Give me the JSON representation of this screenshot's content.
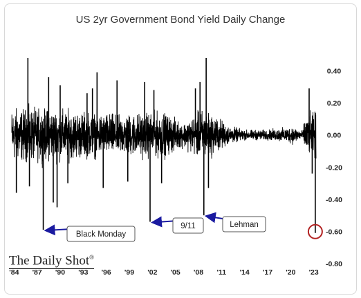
{
  "chart_data": {
    "type": "line",
    "title": "US 2yr Government Bond Yield Daily Change",
    "xlabel": "",
    "ylabel": "",
    "x_range": [
      1983.7,
      2023.3
    ],
    "ylim": [
      -0.8,
      0.6
    ],
    "y_ticks": [
      0.4,
      0.2,
      0.0,
      -0.2,
      -0.4,
      -0.6,
      -0.8
    ],
    "y_tick_labels": [
      "0.40",
      "0.20",
      "0.00",
      "-0.20",
      "-0.40",
      "-0.60",
      "-0.80"
    ],
    "x_ticks": [
      1984,
      1987,
      1990,
      1993,
      1996,
      1999,
      2002,
      2005,
      2008,
      2011,
      2014,
      2017,
      2020,
      2023
    ],
    "x_tick_labels": [
      "'84",
      "'87",
      "'90",
      "'93",
      "'96",
      "'99",
      "'02",
      "'05",
      "'08",
      "'11",
      "'14",
      "'17",
      "'20",
      "'23"
    ],
    "y_axis_position": "right",
    "grid": false,
    "series_color": "#000000",
    "volatility_profile": [
      {
        "x": 1983.7,
        "amp": 0.18
      },
      {
        "x": 1990.0,
        "amp": 0.17
      },
      {
        "x": 1994.0,
        "amp": 0.15
      },
      {
        "x": 1998.0,
        "amp": 0.14
      },
      {
        "x": 2001.0,
        "amp": 0.15
      },
      {
        "x": 2003.5,
        "amp": 0.15
      },
      {
        "x": 2006.0,
        "amp": 0.08
      },
      {
        "x": 2008.5,
        "amp": 0.17
      },
      {
        "x": 2010.5,
        "amp": 0.12
      },
      {
        "x": 2012.0,
        "amp": 0.06
      },
      {
        "x": 2014.0,
        "amp": 0.035
      },
      {
        "x": 2017.0,
        "amp": 0.035
      },
      {
        "x": 2019.5,
        "amp": 0.05
      },
      {
        "x": 2020.3,
        "amp": 0.06
      },
      {
        "x": 2021.5,
        "amp": 0.03
      },
      {
        "x": 2022.0,
        "amp": 0.13
      },
      {
        "x": 2023.3,
        "amp": 0.16
      }
    ],
    "spikes": [
      {
        "x": 1984.3,
        "y": -0.36
      },
      {
        "x": 1985.8,
        "y": 0.48
      },
      {
        "x": 1986.0,
        "y": -0.32
      },
      {
        "x": 1987.8,
        "y": -0.59
      },
      {
        "x": 1988.5,
        "y": 0.36
      },
      {
        "x": 1989.1,
        "y": -0.42
      },
      {
        "x": 1989.6,
        "y": -0.45
      },
      {
        "x": 1990.0,
        "y": 0.31
      },
      {
        "x": 1991.0,
        "y": -0.3
      },
      {
        "x": 1993.5,
        "y": 0.26
      },
      {
        "x": 1994.2,
        "y": 0.29
      },
      {
        "x": 1994.8,
        "y": 0.39
      },
      {
        "x": 1995.6,
        "y": -0.33
      },
      {
        "x": 1997.4,
        "y": 0.34
      },
      {
        "x": 1998.8,
        "y": -0.29
      },
      {
        "x": 2001.0,
        "y": 0.33
      },
      {
        "x": 2001.7,
        "y": -0.54
      },
      {
        "x": 2002.2,
        "y": 0.28
      },
      {
        "x": 2003.2,
        "y": -0.3
      },
      {
        "x": 2007.6,
        "y": 0.29
      },
      {
        "x": 2008.2,
        "y": 0.33
      },
      {
        "x": 2008.7,
        "y": -0.5
      },
      {
        "x": 2009.0,
        "y": 0.48
      },
      {
        "x": 2009.3,
        "y": -0.33
      },
      {
        "x": 2022.4,
        "y": 0.29
      },
      {
        "x": 2022.8,
        "y": -0.24
      },
      {
        "x": 2023.2,
        "y": -0.61
      }
    ],
    "annotations": [
      {
        "text": "Black Monday",
        "target": {
          "x": 1987.8,
          "y": -0.59
        }
      },
      {
        "text": "9/11",
        "target": {
          "x": 2001.7,
          "y": -0.54
        }
      },
      {
        "text": "Lehman",
        "target": {
          "x": 2008.7,
          "y": -0.5
        }
      }
    ],
    "highlight": {
      "x": 2023.2,
      "y": -0.61,
      "color": "#b22222"
    },
    "arrow_color": "#1a1aa0"
  },
  "source": {
    "brand": "The Daily Shot",
    "mark": "®"
  }
}
